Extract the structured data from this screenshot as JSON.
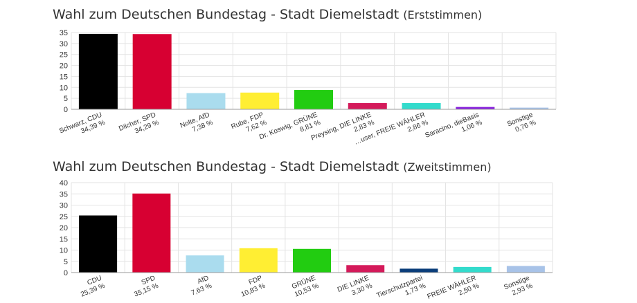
{
  "chart_data": [
    {
      "type": "bar",
      "title": "Wahl zum Deutschen Bundestag - Stadt Diemelstadt",
      "subtitle": "(Erststimmen)",
      "categories": [
        "Schwarz, CDU",
        "Dilcher, SPD",
        "Nolte, AfD",
        "Rube, FDP",
        "Dr. Koswig, GRÜNE",
        "Preysing, DIE LINKE",
        "…user, FREIE WÄHLER",
        "Saracino, dieBasis",
        "Sonstige"
      ],
      "values": [
        34.39,
        34.29,
        7.38,
        7.62,
        8.81,
        2.83,
        2.86,
        1.06,
        0.76
      ],
      "value_labels": [
        "34,39 %",
        "34,29 %",
        "7,38 %",
        "7,62 %",
        "8,81 %",
        "2,83 %",
        "2,86 %",
        "1,06 %",
        "0,76 %"
      ],
      "colors": [
        "#000000",
        "#d70032",
        "#aadcee",
        "#ffee33",
        "#22cc11",
        "#d41a5a",
        "#33dbcc",
        "#8822dd",
        "#a8c3e8"
      ],
      "ylim": [
        0,
        35
      ],
      "yticks": [
        "0",
        "5",
        "10",
        "15",
        "20",
        "25",
        "30",
        "35"
      ],
      "grid": true
    },
    {
      "type": "bar",
      "title": "Wahl zum Deutschen Bundestag - Stadt Diemelstadt",
      "subtitle": "(Zweitstimmen)",
      "categories": [
        "CDU",
        "SPD",
        "AfD",
        "FDP",
        "GRÜNE",
        "DIE LINKE",
        "Tierschutzpartei",
        "FREIE WÄHLER",
        "Sonstige"
      ],
      "values": [
        25.39,
        35.15,
        7.63,
        10.83,
        10.53,
        3.3,
        1.73,
        2.5,
        2.93
      ],
      "value_labels": [
        "25,39 %",
        "35,15 %",
        "7,63 %",
        "10,83 %",
        "10,53 %",
        "3,30 %",
        "1,73 %",
        "2,50 %",
        "2,93 %"
      ],
      "colors": [
        "#000000",
        "#d70032",
        "#aadcee",
        "#ffee33",
        "#22cc11",
        "#d41a5a",
        "#0a3d7a",
        "#33dbcc",
        "#a8c3e8"
      ],
      "ylim": [
        0,
        40
      ],
      "yticks": [
        "0",
        "5",
        "10",
        "15",
        "20",
        "25",
        "30",
        "35",
        "40"
      ],
      "grid": true
    }
  ]
}
